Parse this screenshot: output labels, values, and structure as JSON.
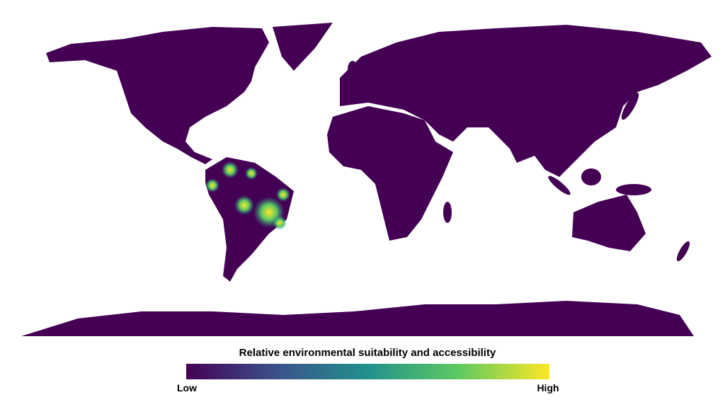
{
  "legend": {
    "title": "Relative environmental suitability and accessibility",
    "low_label": "Low",
    "high_label": "High"
  }
}
